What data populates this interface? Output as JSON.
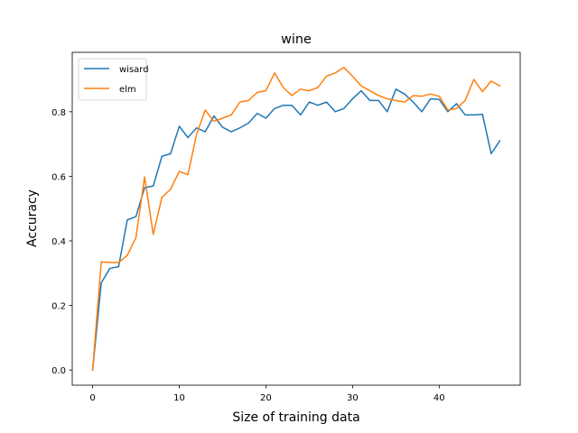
{
  "chart_data": {
    "type": "line",
    "title": "wine",
    "xlabel": "Size of training data",
    "ylabel": "Accuracy",
    "xlim": [
      -2.35,
      49.35
    ],
    "ylim": [
      -0.047,
      0.984
    ],
    "xticks": [
      0,
      10,
      20,
      30,
      40
    ],
    "xtick_labels": [
      "0",
      "10",
      "20",
      "30",
      "40"
    ],
    "yticks": [
      0.0,
      0.2,
      0.4,
      0.6,
      0.8
    ],
    "ytick_labels": [
      "0.0",
      "0.2",
      "0.4",
      "0.6",
      "0.8"
    ],
    "grid": false,
    "legend_position": "upper-left",
    "x": [
      0,
      1,
      2,
      3,
      4,
      5,
      6,
      7,
      8,
      9,
      10,
      11,
      12,
      13,
      14,
      15,
      16,
      17,
      18,
      19,
      20,
      21,
      22,
      23,
      24,
      25,
      26,
      27,
      28,
      29,
      30,
      31,
      32,
      33,
      34,
      35,
      36,
      37,
      38,
      39,
      40,
      41,
      42,
      43,
      44,
      45,
      46,
      47
    ],
    "series": [
      {
        "name": "wisard",
        "color": "#1f77b4",
        "values": [
          0.0,
          0.27,
          0.315,
          0.32,
          0.465,
          0.475,
          0.565,
          0.57,
          0.662,
          0.67,
          0.755,
          0.72,
          0.75,
          0.738,
          0.787,
          0.752,
          0.738,
          0.75,
          0.765,
          0.795,
          0.78,
          0.81,
          0.82,
          0.82,
          0.79,
          0.83,
          0.82,
          0.83,
          0.8,
          0.81,
          0.84,
          0.865,
          0.835,
          0.835,
          0.8,
          0.87,
          0.855,
          0.83,
          0.8,
          0.84,
          0.838,
          0.8,
          0.825,
          0.79,
          0.79,
          0.792,
          0.67,
          0.71
        ]
      },
      {
        "name": "elm",
        "color": "#ff7f0e",
        "values": [
          0.0,
          0.335,
          0.333,
          0.333,
          0.355,
          0.41,
          0.598,
          0.42,
          0.535,
          0.56,
          0.615,
          0.605,
          0.73,
          0.805,
          0.77,
          0.78,
          0.79,
          0.83,
          0.835,
          0.86,
          0.865,
          0.92,
          0.875,
          0.85,
          0.87,
          0.865,
          0.875,
          0.91,
          0.92,
          0.937,
          0.91,
          0.88,
          0.865,
          0.85,
          0.84,
          0.835,
          0.83,
          0.85,
          0.848,
          0.855,
          0.848,
          0.805,
          0.81,
          0.835,
          0.9,
          0.862,
          0.895,
          0.88
        ]
      }
    ]
  }
}
